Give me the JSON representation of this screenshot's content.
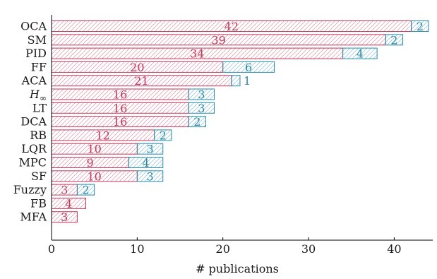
{
  "chart_data": {
    "type": "bar",
    "orientation": "horizontal",
    "stacked": true,
    "categories": [
      "OCA",
      "SM",
      "PID",
      "FF",
      "ACA",
      "H∞",
      "LT",
      "DCA",
      "RB",
      "LQR",
      "MPC",
      "SF",
      "Fuzzy",
      "FB",
      "MFA"
    ],
    "series": [
      {
        "values": [
          42,
          39,
          34,
          20,
          21,
          16,
          16,
          16,
          12,
          10,
          9,
          10,
          3,
          4,
          3
        ]
      },
      {
        "values": [
          2,
          2,
          4,
          6,
          1,
          3,
          3,
          2,
          2,
          3,
          4,
          3,
          2,
          0,
          0
        ]
      }
    ],
    "xlabel": "# publications",
    "ylabel": "",
    "xlim": [
      0,
      44.5
    ],
    "xticks": [
      0,
      10,
      20,
      30,
      40
    ],
    "grid": false,
    "colors": {
      "series1": "#c0385c",
      "series2": "#2a8aaa",
      "text": "#1a1a1a",
      "axis": "#000000"
    }
  }
}
